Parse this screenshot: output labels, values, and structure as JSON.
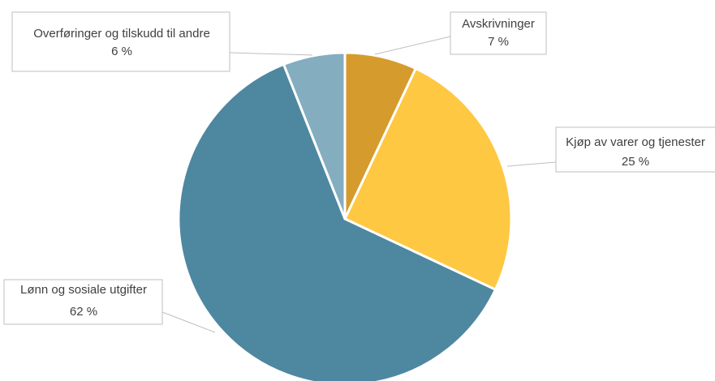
{
  "chart_data": {
    "type": "pie",
    "categories": [
      "Avskrivninger",
      "Kjøp av varer og tjenester",
      "Lønn og sosiale utgifter",
      "Overføringer og tilskudd til andre"
    ],
    "values": [
      7,
      25,
      62,
      6
    ],
    "value_labels": [
      "7 %",
      "25 %",
      "62 %",
      "6 %"
    ],
    "colors": [
      "#d59b2d",
      "#fec843",
      "#4e87a0",
      "#84adc0"
    ]
  }
}
